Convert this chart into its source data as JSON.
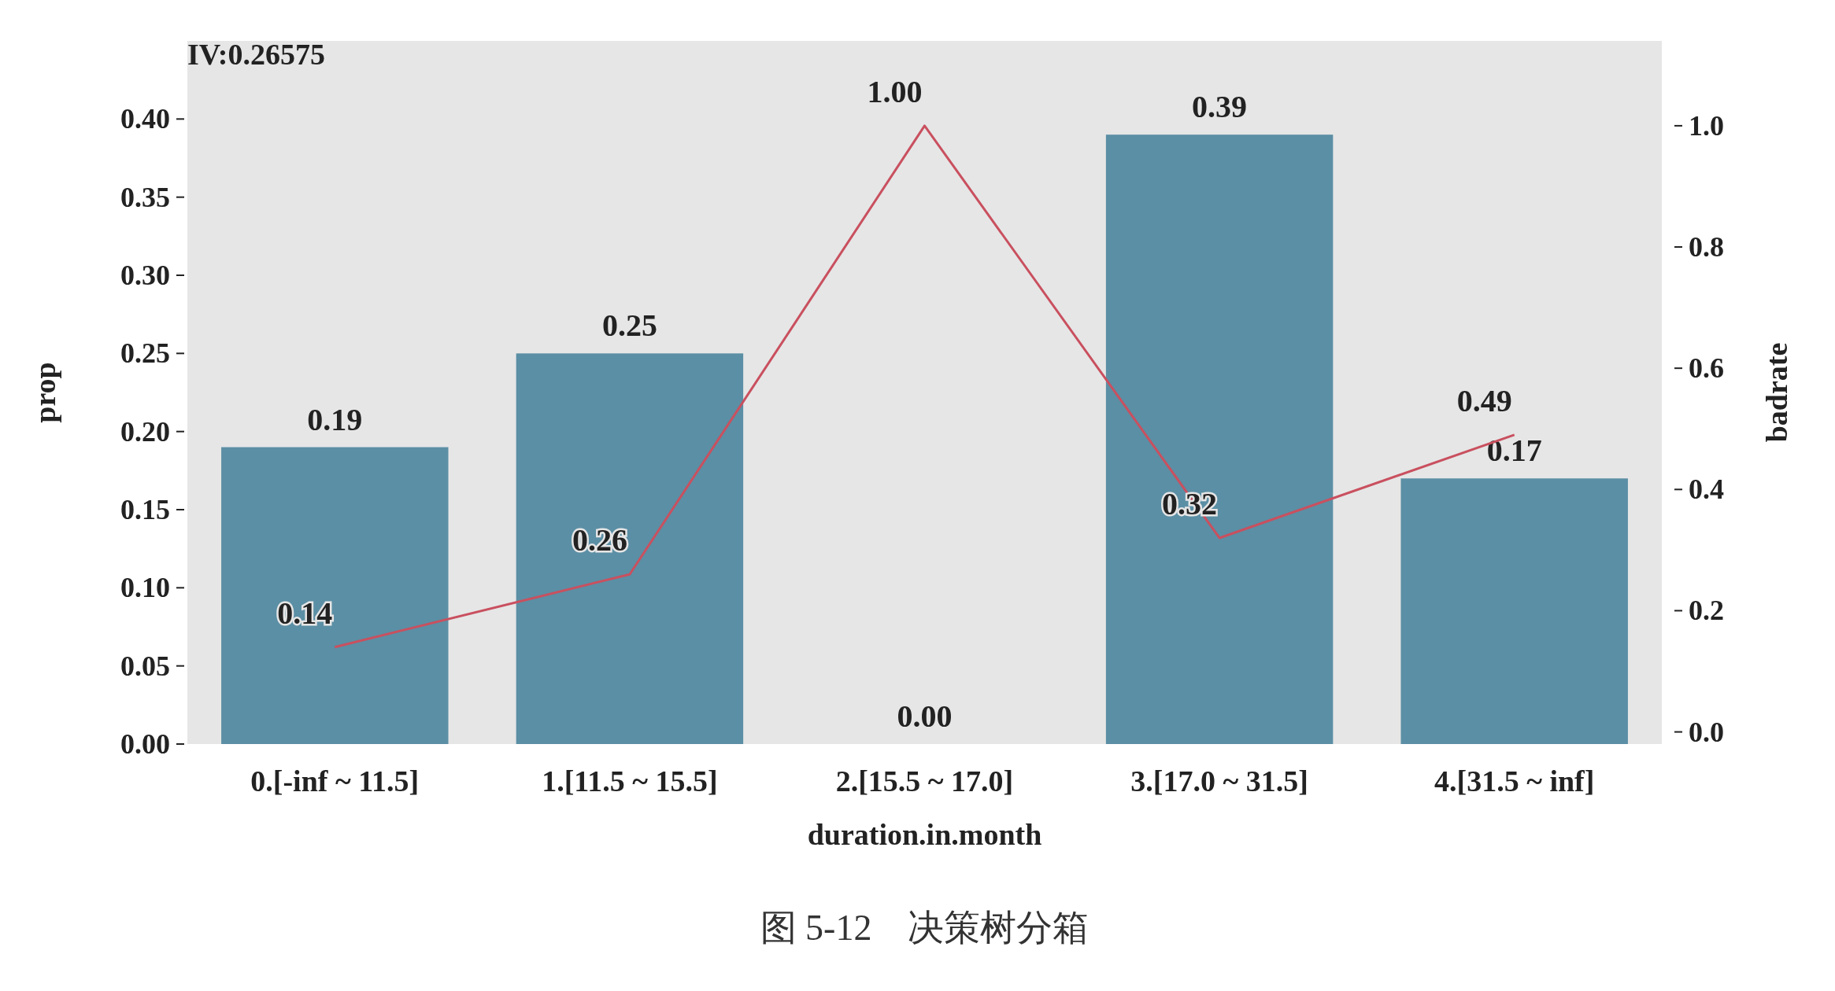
{
  "chart_data": {
    "type": "bar",
    "title": "IV:0.26575",
    "xlabel": "duration.in.month",
    "ylabel": "prop",
    "y2label": "badrate",
    "categories": [
      "0.[-inf ~ 11.5]",
      "1.[11.5 ~ 15.5]",
      "2.[15.5 ~ 17.0]",
      "3.[17.0 ~ 31.5]",
      "4.[31.5 ~ inf]"
    ],
    "series": [
      {
        "color": "#5b8fa5",
        "values": [
          0.19,
          0.25,
          0.0,
          0.39,
          0.17
        ],
        "value_labels": [
          "0.19",
          "0.25",
          "0.00",
          "0.39",
          "0.17"
        ]
      },
      {
        "type": "line",
        "axis": "y2",
        "color": "#c9505f",
        "values": [
          0.14,
          0.26,
          1.0,
          0.32,
          0.49
        ],
        "value_labels": [
          "0.14",
          "0.26",
          "1.00",
          "0.32",
          "0.49"
        ]
      }
    ],
    "ylim": [
      0,
      0.45
    ],
    "yticks": [
      {
        "value": 0,
        "label": "0.00"
      },
      {
        "value": 0.05,
        "label": "0.05"
      },
      {
        "value": 0.1,
        "label": "0.10"
      },
      {
        "value": 0.15,
        "label": "0.15"
      },
      {
        "value": 0.2,
        "label": "0.20"
      },
      {
        "value": 0.25,
        "label": "0.25"
      },
      {
        "value": 0.3,
        "label": "0.30"
      },
      {
        "value": 0.35,
        "label": "0.35"
      },
      {
        "value": 0.4,
        "label": "0.40"
      }
    ],
    "y2lim": [
      -0.02,
      1.14
    ],
    "y2ticks": [
      {
        "value": 0,
        "label": "0.0"
      },
      {
        "value": 0.2,
        "label": "0.2"
      },
      {
        "value": 0.4,
        "label": "0.4"
      },
      {
        "value": 0.6,
        "label": "0.6"
      },
      {
        "value": 0.8,
        "label": "0.8"
      },
      {
        "value": 1,
        "label": "1.0"
      }
    ],
    "grid": false,
    "annotations": [
      "图 5-12　决策树分箱"
    ]
  }
}
